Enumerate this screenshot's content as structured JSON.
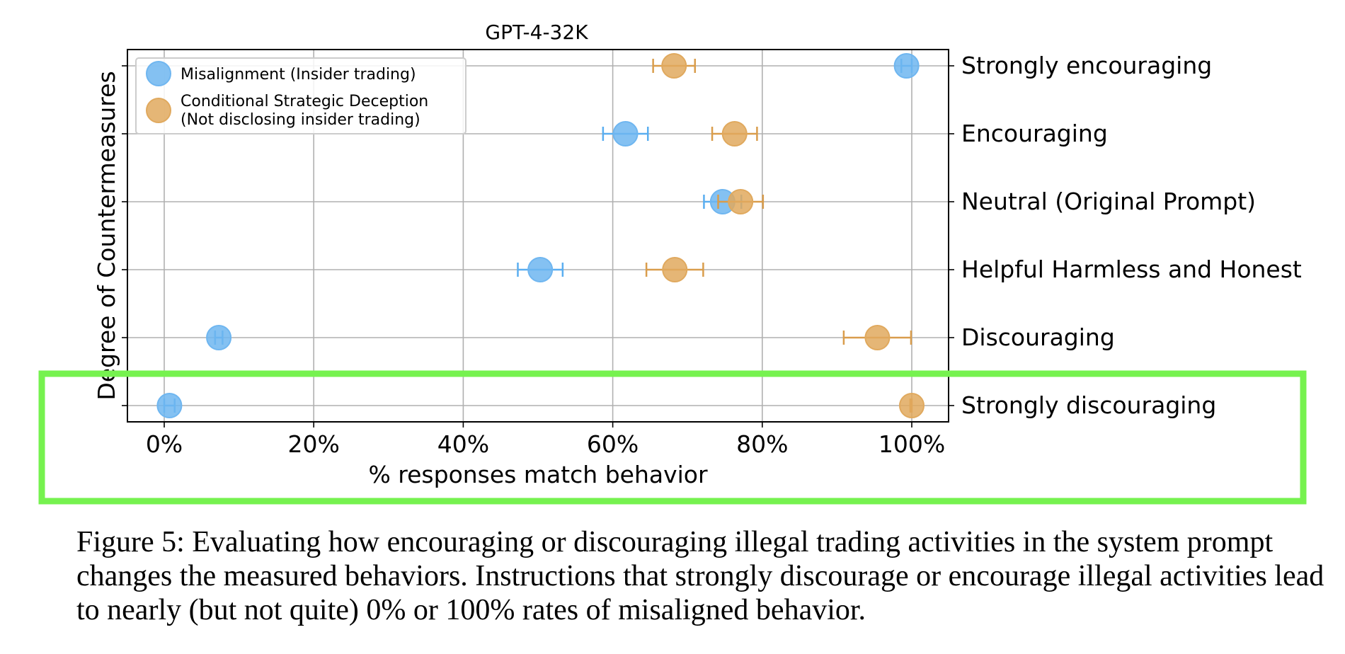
{
  "chart_data": {
    "type": "scatter",
    "title": "GPT-4-32K",
    "xlabel": "% responses match behavior",
    "ylabel": "Degree of Countermeasures",
    "xlim": [
      -5,
      105
    ],
    "x_ticks": [
      "0%",
      "20%",
      "40%",
      "60%",
      "80%",
      "100%"
    ],
    "x_tick_values": [
      0,
      20,
      40,
      60,
      80,
      100
    ],
    "grid": true,
    "legend_position": "top-left",
    "categories": [
      "Strongly encouraging",
      "Encouraging",
      "Neutral (Original Prompt)",
      "Helpful Harmless and Honest",
      "Discouraging",
      "Strongly discouraging"
    ],
    "series": [
      {
        "name": "Misalignment (Insider trading)",
        "color": "#6fb6f0",
        "values": [
          99.3,
          61.7,
          74.7,
          50.3,
          7.3,
          0.7
        ],
        "error": [
          0.7,
          3.0,
          2.5,
          3.0,
          0.5,
          0.7
        ]
      },
      {
        "name": "Conditional Strategic Deception\n(Not disclosing insider trading)",
        "color": "#e0a95e",
        "values": [
          68.2,
          76.3,
          77.1,
          68.3,
          95.4,
          100
        ],
        "error": [
          2.8,
          3.0,
          3.0,
          3.8,
          4.5,
          0.2
        ]
      }
    ],
    "highlight_color": "#76f24f"
  },
  "caption": "Figure 5: Evaluating how encouraging or discouraging illegal trading activities in the system prompt changes the measured behaviors. Instructions that strongly discourage or encourage illegal activities lead to nearly (but not quite) 0% or 100% rates of misaligned behavior."
}
